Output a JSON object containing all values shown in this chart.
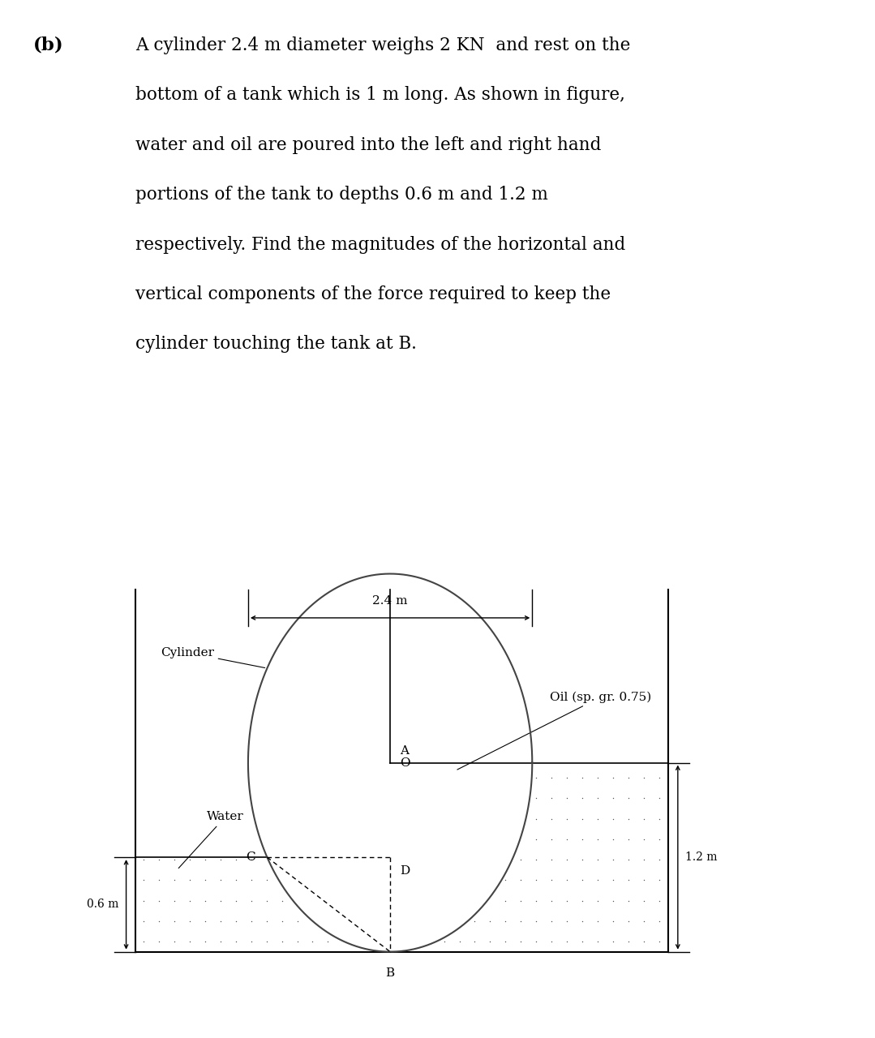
{
  "title_label": "(b)",
  "problem_lines": [
    "A cylinder 2.4 m diameter weighs 2 KN  and rest on the",
    "bottom of a tank which is 1 m long. As shown in figure,",
    "water and oil are poured into the left and right hand",
    "portions of the tank to depths 0.6 m and 1.2 m",
    "respectively. Find the magnitudes of the horizontal and",
    "vertical components of the force required to keep the",
    "cylinder touching the tank at B."
  ],
  "bg_color": "#ffffff",
  "text_color": "#000000",
  "label_2_4_m": "2.4 m",
  "label_water": "Water",
  "label_cylinder": "Cylinder",
  "label_oil": "Oil (sp. gr. 0.75)",
  "label_O": "O",
  "label_A": "A",
  "label_B": "B",
  "label_C": "C",
  "label_D": "D",
  "label_06m": "0.6 m",
  "label_12m": "1.2 m"
}
